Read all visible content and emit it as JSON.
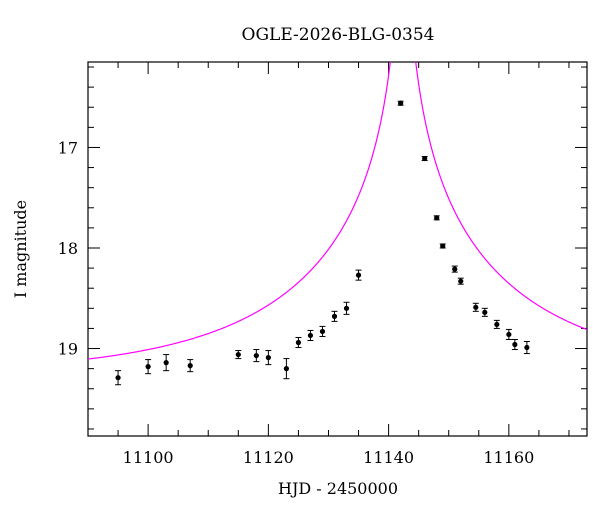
{
  "chart_data": {
    "type": "scatter",
    "title": "OGLE-2026-BLG-0354",
    "xlabel": "HJD - 2450000",
    "ylabel": "I magnitude",
    "xlim": [
      11090,
      11173
    ],
    "ylim": [
      19.87,
      16.15
    ],
    "y_inverted": true,
    "grid": false,
    "x_ticks": [
      11100,
      11120,
      11140,
      11160
    ],
    "y_ticks": [
      17,
      18,
      19
    ],
    "colors": {
      "model": "#ff00ff",
      "points": "#000000"
    },
    "model": {
      "t0": 11142.4,
      "baseline": 19.27,
      "u0": 0.0102,
      "tE": 38
    },
    "points": [
      {
        "x": 11095.0,
        "y": 19.29,
        "err": 0.07
      },
      {
        "x": 11100.0,
        "y": 19.18,
        "err": 0.07
      },
      {
        "x": 11103.0,
        "y": 19.14,
        "err": 0.08
      },
      {
        "x": 11107.0,
        "y": 19.17,
        "err": 0.06
      },
      {
        "x": 11115.0,
        "y": 19.06,
        "err": 0.04
      },
      {
        "x": 11118.0,
        "y": 19.07,
        "err": 0.06
      },
      {
        "x": 11120.0,
        "y": 19.09,
        "err": 0.07
      },
      {
        "x": 11123.0,
        "y": 19.2,
        "err": 0.1
      },
      {
        "x": 11125.0,
        "y": 18.94,
        "err": 0.05
      },
      {
        "x": 11127.0,
        "y": 18.87,
        "err": 0.05
      },
      {
        "x": 11129.0,
        "y": 18.83,
        "err": 0.05
      },
      {
        "x": 11131.0,
        "y": 18.68,
        "err": 0.05
      },
      {
        "x": 11133.0,
        "y": 18.6,
        "err": 0.06
      },
      {
        "x": 11135.0,
        "y": 18.27,
        "err": 0.05
      },
      {
        "x": 11142.0,
        "y": 16.56,
        "err": 0.02
      },
      {
        "x": 11146.0,
        "y": 17.11,
        "err": 0.02
      },
      {
        "x": 11148.0,
        "y": 17.7,
        "err": 0.02
      },
      {
        "x": 11149.0,
        "y": 17.98,
        "err": 0.02
      },
      {
        "x": 11151.0,
        "y": 18.21,
        "err": 0.03
      },
      {
        "x": 11152.0,
        "y": 18.33,
        "err": 0.03
      },
      {
        "x": 11154.5,
        "y": 18.59,
        "err": 0.04
      },
      {
        "x": 11156.0,
        "y": 18.64,
        "err": 0.04
      },
      {
        "x": 11158.0,
        "y": 18.76,
        "err": 0.04
      },
      {
        "x": 11160.0,
        "y": 18.86,
        "err": 0.05
      },
      {
        "x": 11161.0,
        "y": 18.96,
        "err": 0.05
      },
      {
        "x": 11163.0,
        "y": 18.99,
        "err": 0.06
      }
    ]
  }
}
